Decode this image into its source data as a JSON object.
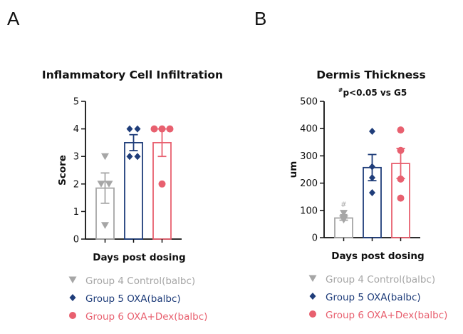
{
  "panels": [
    {
      "letter": "A"
    },
    {
      "letter": "B"
    }
  ],
  "chart_data": [
    {
      "type": "bar",
      "title": "Inflammatory Cell Infiltration",
      "xlabel": "Days post dosing",
      "ylabel": "Score",
      "ylim": [
        0,
        5
      ],
      "yticks": [
        0,
        1,
        2,
        3,
        4,
        5
      ],
      "annotation": null,
      "series": [
        {
          "name": "Group 4 Control(balbc)",
          "color": "#a6a6a6",
          "marker": "triangle-down",
          "mean": 1.85,
          "sem": 0.55,
          "points": [
            3,
            2,
            2,
            0.5
          ],
          "point_marks": []
        },
        {
          "name": "Group 5 OXA(balbc)",
          "color": "#1f3d7a",
          "marker": "diamond",
          "mean": 3.5,
          "sem": 0.29,
          "points": [
            4,
            4,
            3,
            3
          ],
          "point_marks": []
        },
        {
          "name": "Group 6 OXA+Dex(balbc)",
          "color": "#e8606f",
          "marker": "circle",
          "mean": 3.5,
          "sem": 0.5,
          "points": [
            4,
            4,
            4,
            2
          ],
          "point_marks": []
        }
      ]
    },
    {
      "type": "bar",
      "title": "Dermis Thickness",
      "xlabel": "Days post dosing",
      "ylabel": "um",
      "ylim": [
        0,
        500
      ],
      "yticks": [
        0,
        100,
        200,
        300,
        400,
        500
      ],
      "annotation": {
        "sup": "#",
        "text": "p<0.05 vs G5"
      },
      "series": [
        {
          "name": "Group 4 Control(balbc)",
          "color": "#a6a6a6",
          "marker": "triangle-down",
          "mean": 72,
          "sem": 8,
          "points": [
            90,
            75,
            70,
            65
          ],
          "point_marks": [
            {
              "symbol": "#",
              "value": 125
            }
          ]
        },
        {
          "name": "Group 5 OXA(balbc)",
          "color": "#1f3d7a",
          "marker": "diamond",
          "mean": 257,
          "sem": 48,
          "points": [
            390,
            260,
            220,
            165
          ],
          "point_marks": []
        },
        {
          "name": "Group 6 OXA+Dex(balbc)",
          "color": "#e8606f",
          "marker": "circle",
          "mean": 272,
          "sem": 55,
          "points": [
            395,
            320,
            215,
            145
          ],
          "point_marks": []
        }
      ]
    }
  ],
  "legends": [
    {
      "items": [
        "Group 4 Control(balbc)",
        "Group 5 OXA(balbc)",
        "Group 6 OXA+Dex(balbc)"
      ]
    },
    {
      "items": [
        "Group 4 Control(balbc)",
        "Group 5 OXA(balbc)",
        "Group 6 OXA+Dex(balbc)"
      ]
    }
  ]
}
